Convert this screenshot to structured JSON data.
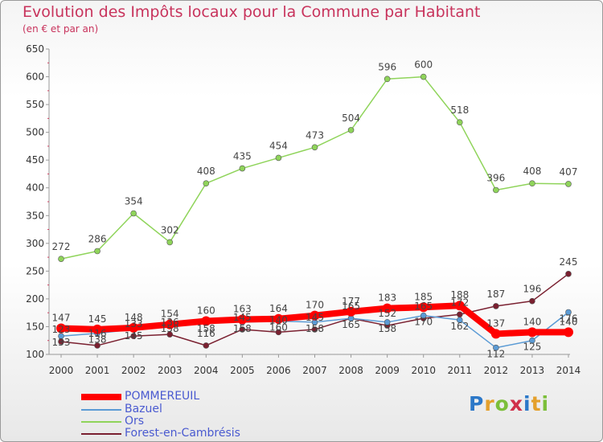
{
  "chart_data": {
    "type": "line",
    "title": "Evolution des Impôts locaux pour la Commune par Habitant",
    "subtitle": "(en € et par an)",
    "x": [
      "2000",
      "2001",
      "2002",
      "2003",
      "2004",
      "2005",
      "2006",
      "2007",
      "2008",
      "2009",
      "2010",
      "2011",
      "2012",
      "2013",
      "2014"
    ],
    "ylim": [
      100,
      650
    ],
    "yticks": [
      100,
      150,
      200,
      250,
      300,
      350,
      400,
      450,
      500,
      550,
      600,
      650
    ],
    "grid": false,
    "legend_position": "bottom-left",
    "series": [
      {
        "name": "POMMEREUIL",
        "color": "#ff0000",
        "values": [
          147,
          145,
          148,
          154,
          160,
          163,
          164,
          170,
          177,
          183,
          185,
          188,
          137,
          140,
          140
        ],
        "labels": [
          "147",
          "145",
          "148",
          "154",
          "160",
          "163",
          "164",
          "170",
          "177",
          "183",
          "185",
          "188",
          "137",
          "140",
          "140"
        ]
      },
      {
        "name": "Bazuel",
        "color": "#5b9bd5",
        "values": [
          133,
          138,
          145,
          158,
          158,
          158,
          160,
          158,
          165,
          158,
          170,
          162,
          112,
          125,
          176
        ],
        "labels": [
          "133",
          "138",
          "145",
          "158",
          "158",
          "158",
          "160",
          "158",
          "165",
          "158",
          "170",
          "162",
          "112",
          "125",
          "176"
        ]
      },
      {
        "name": "Ors",
        "color": "#8fd45a",
        "values": [
          272,
          286,
          354,
          302,
          408,
          435,
          454,
          473,
          504,
          596,
          600,
          518,
          396,
          408,
          407
        ],
        "labels": [
          "272",
          "286",
          "354",
          "302",
          "408",
          "435",
          "454",
          "473",
          "504",
          "596",
          "600",
          "518",
          "396",
          "408",
          "407"
        ]
      },
      {
        "name": "Forest-en-Cambrésis",
        "color": "#7a2030",
        "values": [
          123,
          116,
          133,
          136,
          116,
          145,
          140,
          145,
          165,
          152,
          165,
          172,
          187,
          196,
          245
        ],
        "labels": [
          "123",
          "116",
          "133",
          "136",
          "116",
          "145",
          "140",
          "145",
          "165",
          "152",
          "165",
          "172",
          "187",
          "196",
          "245"
        ]
      }
    ]
  },
  "logo_text": "Proxiti"
}
